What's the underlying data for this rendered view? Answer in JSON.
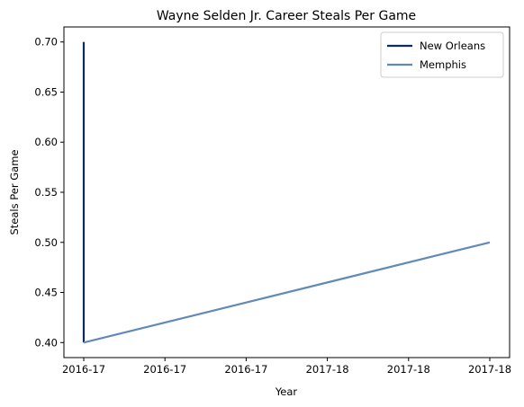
{
  "chart_data": {
    "type": "line",
    "title": "Wayne Selden Jr. Career Steals Per Game",
    "xlabel": "Year",
    "ylabel": "Steals Per Game",
    "x_tick_labels": [
      "2016-17",
      "2016-17",
      "2016-17",
      "2017-18",
      "2017-18",
      "2017-18"
    ],
    "y_ticks": [
      0.4,
      0.45,
      0.5,
      0.55,
      0.6,
      0.65,
      0.7
    ],
    "ylim": [
      0.385,
      0.715
    ],
    "grid": false,
    "legend_position": "top-right",
    "series": [
      {
        "name": "New Orleans",
        "color": "#0c2c5c",
        "points": [
          {
            "x": "2016-17",
            "y": 0.7
          },
          {
            "x": "2016-17",
            "y": 0.4
          }
        ]
      },
      {
        "name": "Memphis",
        "color": "#6189b9",
        "points": [
          {
            "x": "2016-17",
            "y": 0.4
          },
          {
            "x": "2017-18",
            "y": 0.5
          }
        ]
      }
    ]
  }
}
